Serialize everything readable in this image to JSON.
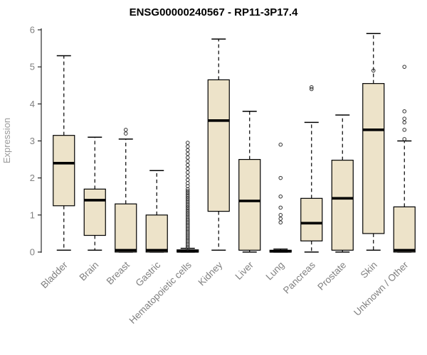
{
  "chart_data": {
    "type": "boxplot",
    "title": "ENSG00000240567 - RP11-3P17.4",
    "ylabel": "Expression",
    "ylim": [
      0,
      6
    ],
    "yticks": [
      0,
      1,
      2,
      3,
      4,
      5,
      6
    ],
    "grid": false,
    "colors": {
      "box_fill": "#ede3c9",
      "box_stroke": "#000000",
      "median": "#000000",
      "whisker": "#000000",
      "outlier": "#333333",
      "axis": "#000000",
      "label": "#808080"
    },
    "categories": [
      "Bladder",
      "Brain",
      "Breast",
      "Gastric",
      "Hematopoietic cells",
      "Kidney",
      "Liver",
      "Lung",
      "Pancreas",
      "Prostate",
      "Skin",
      "Unknown / Other"
    ],
    "series": [
      {
        "name": "Bladder",
        "low": 0.05,
        "q1": 1.25,
        "median": 2.4,
        "q3": 3.15,
        "high": 5.3,
        "outliers": []
      },
      {
        "name": "Brain",
        "low": 0.05,
        "q1": 0.45,
        "median": 1.4,
        "q3": 1.7,
        "high": 3.1,
        "outliers": []
      },
      {
        "name": "Breast",
        "low": 0,
        "q1": 0,
        "median": 0.05,
        "q3": 1.3,
        "high": 3.05,
        "outliers": [
          3.2,
          3.3
        ]
      },
      {
        "name": "Gastric",
        "low": 0,
        "q1": 0,
        "median": 0.05,
        "q3": 1.0,
        "high": 2.2,
        "outliers": []
      },
      {
        "name": "Hematopoietic cells",
        "low": 0,
        "q1": 0,
        "median": 0.02,
        "q3": 0.06,
        "high": 0.1,
        "outliers": [
          0.1,
          0.14,
          0.18,
          0.22,
          0.26,
          0.3,
          0.34,
          0.38,
          0.42,
          0.46,
          0.5,
          0.54,
          0.58,
          0.62,
          0.66,
          0.7,
          0.74,
          0.78,
          0.82,
          0.86,
          0.9,
          0.95,
          1.0,
          1.05,
          1.1,
          1.15,
          1.2,
          1.25,
          1.3,
          1.35,
          1.4,
          1.45,
          1.5,
          1.55,
          1.6,
          1.65,
          1.7,
          1.78,
          1.86,
          1.95,
          2.05,
          2.15,
          2.25,
          2.35,
          2.45,
          2.55,
          2.65,
          2.75,
          2.85,
          2.95
        ]
      },
      {
        "name": "Kidney",
        "low": 0.05,
        "q1": 1.1,
        "median": 3.55,
        "q3": 4.65,
        "high": 5.75,
        "outliers": []
      },
      {
        "name": "Liver",
        "low": 0,
        "q1": 0.05,
        "median": 1.38,
        "q3": 2.5,
        "high": 3.8,
        "outliers": []
      },
      {
        "name": "Lung",
        "low": 0,
        "q1": 0,
        "median": 0.02,
        "q3": 0.05,
        "high": 0.08,
        "outliers": [
          0.8,
          0.9,
          1.0,
          1.2,
          1.5,
          2.0,
          2.9
        ]
      },
      {
        "name": "Pancreas",
        "low": 0,
        "q1": 0.3,
        "median": 0.78,
        "q3": 1.45,
        "high": 3.5,
        "outliers": [
          4.4,
          4.45
        ]
      },
      {
        "name": "Prostate",
        "low": 0,
        "q1": 0.05,
        "median": 1.45,
        "q3": 2.48,
        "high": 3.7,
        "outliers": []
      },
      {
        "name": "Skin",
        "low": 0.05,
        "q1": 0.5,
        "median": 3.3,
        "q3": 4.55,
        "high": 5.9,
        "outliers": [
          4.9
        ]
      },
      {
        "name": "Unknown / Other",
        "low": 0,
        "q1": 0,
        "median": 0.05,
        "q3": 1.22,
        "high": 3.0,
        "outliers": [
          3.05,
          3.3,
          3.5,
          3.6,
          3.8,
          5.0
        ]
      }
    ]
  }
}
